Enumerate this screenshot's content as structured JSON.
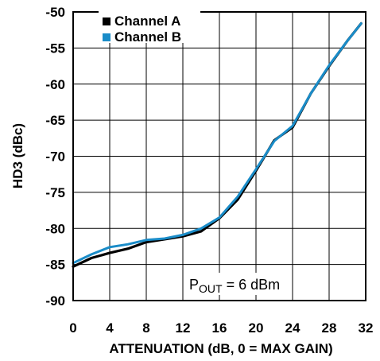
{
  "chart_data": {
    "type": "line",
    "xlabel": "ATTENUATION (dB, 0 = MAX GAIN)",
    "ylabel": "HD3 (dBc)",
    "xlim": [
      0,
      32
    ],
    "ylim": [
      -90,
      -50
    ],
    "xticks": [
      "0",
      "4",
      "8",
      "12",
      "16",
      "20",
      "24",
      "28",
      "32"
    ],
    "yticks": [
      "-50",
      "-55",
      "-60",
      "-65",
      "-70",
      "-75",
      "-80",
      "-85",
      "-90"
    ],
    "grid": true,
    "legend_position": "top-left",
    "annotation": {
      "main": "P",
      "sub": "OUT",
      "rest": " = 6 dBm"
    },
    "series": [
      {
        "name": "Channel A",
        "color": "#000000",
        "x": [
          0,
          2,
          4,
          6,
          8,
          10,
          12,
          14,
          16,
          18,
          20,
          22,
          24,
          26,
          28,
          30,
          31.5
        ],
        "y": [
          -85.3,
          -84.1,
          -83.4,
          -82.8,
          -81.9,
          -81.5,
          -81.1,
          -80.4,
          -78.6,
          -76.0,
          -72.0,
          -67.8,
          -66.0,
          -61.3,
          -57.5,
          -54.0,
          -51.6
        ]
      },
      {
        "name": "Channel B",
        "color": "#1a8cc8",
        "x": [
          0,
          2,
          4,
          6,
          8,
          10,
          12,
          14,
          16,
          18,
          20,
          22,
          24,
          26,
          28,
          30,
          31.5
        ],
        "y": [
          -84.8,
          -83.6,
          -82.6,
          -82.2,
          -81.6,
          -81.4,
          -80.9,
          -80.0,
          -78.5,
          -75.6,
          -71.8,
          -67.9,
          -65.8,
          -61.3,
          -57.4,
          -54.0,
          -51.6
        ]
      }
    ]
  }
}
